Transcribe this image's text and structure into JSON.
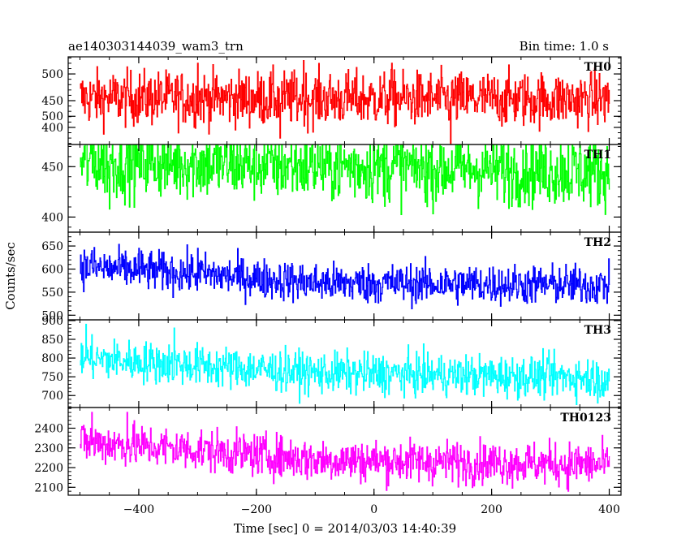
{
  "header": {
    "title": "ae140303144039_wam3_trn",
    "bin_time": "Bin time: 1.0 s"
  },
  "chart_data": {
    "type": "line",
    "xlabel": "Time [sec] 0 = 2014/03/03 14:40:39",
    "ylabel": "Counts/sec",
    "xlim": [
      -520,
      420
    ],
    "x_ticks": [
      -400,
      -200,
      0,
      200,
      400
    ],
    "x_range": [
      -500,
      400
    ],
    "panels": [
      {
        "name": "TH0",
        "color": "#ff0000",
        "ylim": [
          368,
          532
        ],
        "y_ticks": [
          400,
          450,
          500
        ],
        "trend": [
          [
            -500,
            455
          ],
          [
            400,
            452
          ]
        ],
        "spread": 26,
        "extremes": [
          [
            -300,
            520
          ],
          [
            -120,
            525
          ],
          [
            30,
            520
          ],
          [
            130,
            370
          ],
          [
            -160,
            380
          ]
        ]
      },
      {
        "name": "TH1",
        "color": "#00ff00",
        "ylim": [
          385,
          472
        ],
        "y_ticks": [
          400,
          450,
          500
        ],
        "trend": [
          [
            -500,
            455
          ],
          [
            -200,
            452
          ],
          [
            400,
            445
          ]
        ],
        "spread": 18,
        "extremes": [
          [
            -480,
            478
          ],
          [
            0,
            470
          ],
          [
            -450,
            408
          ]
        ]
      },
      {
        "name": "TH2",
        "color": "#0000ff",
        "ylim": [
          490,
          680
        ],
        "y_ticks": [
          500,
          550,
          600,
          650
        ],
        "trend": [
          [
            -500,
            605
          ],
          [
            -300,
            590
          ],
          [
            -100,
            570
          ],
          [
            400,
            565
          ]
        ],
        "spread": 22,
        "extremes": [
          [
            -480,
            640
          ],
          [
            -300,
            645
          ],
          [
            -400,
            645
          ]
        ]
      },
      {
        "name": "TH3",
        "color": "#00ffff",
        "ylim": [
          668,
          902
        ],
        "y_ticks": [
          700,
          750,
          800,
          850,
          900
        ],
        "trend": [
          [
            -500,
            800
          ],
          [
            -300,
            780
          ],
          [
            -100,
            760
          ],
          [
            400,
            748
          ]
        ],
        "spread": 28,
        "extremes": [
          [
            -490,
            890
          ],
          [
            -340,
            880
          ],
          [
            380,
            680
          ]
        ]
      },
      {
        "name": "TH0123",
        "color": "#ff00ff",
        "ylim": [
          2060,
          2505
        ],
        "y_ticks": [
          2100,
          2200,
          2300,
          2400
        ],
        "trend": [
          [
            -500,
            2330
          ],
          [
            -300,
            2290
          ],
          [
            -100,
            2240
          ],
          [
            400,
            2215
          ]
        ],
        "spread": 55,
        "extremes": [
          [
            -480,
            2480
          ],
          [
            -420,
            2480
          ],
          [
            330,
            2080
          ]
        ]
      }
    ]
  }
}
